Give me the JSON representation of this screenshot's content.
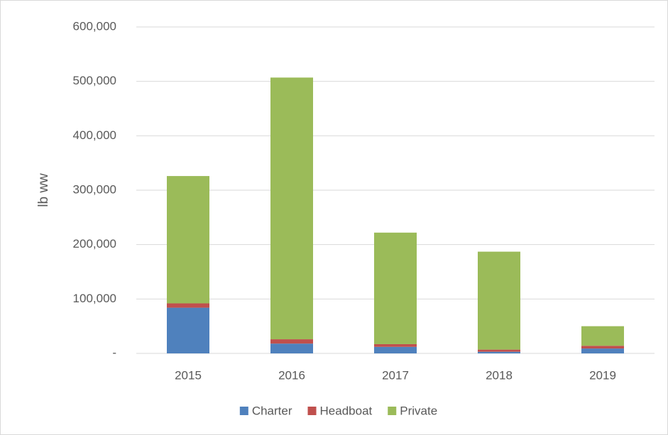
{
  "chart_data": {
    "type": "stacked_bar",
    "y_label": "lb ww",
    "categories": [
      "2015",
      "2016",
      "2017",
      "2018",
      "2019"
    ],
    "series": [
      {
        "name": "Charter",
        "color": "#4f81bd",
        "values": [
          84000,
          18000,
          12000,
          3000,
          9000
        ]
      },
      {
        "name": "Headboat",
        "color": "#c0504d",
        "values": [
          8000,
          8000,
          5000,
          4000,
          5000
        ]
      },
      {
        "name": "Private",
        "color": "#9bbb59",
        "values": [
          234000,
          481000,
          205000,
          180000,
          36000
        ]
      }
    ],
    "ylim": [
      0,
      600000
    ],
    "yticks": [
      {
        "value": 0,
        "label": "-"
      },
      {
        "value": 100000,
        "label": "100,000"
      },
      {
        "value": 200000,
        "label": "200,000"
      },
      {
        "value": 300000,
        "label": "300,000"
      },
      {
        "value": 400000,
        "label": "400,000"
      },
      {
        "value": 500000,
        "label": "500,000"
      },
      {
        "value": 600000,
        "label": "600,000"
      }
    ],
    "grid": true,
    "legend": "bottom"
  }
}
